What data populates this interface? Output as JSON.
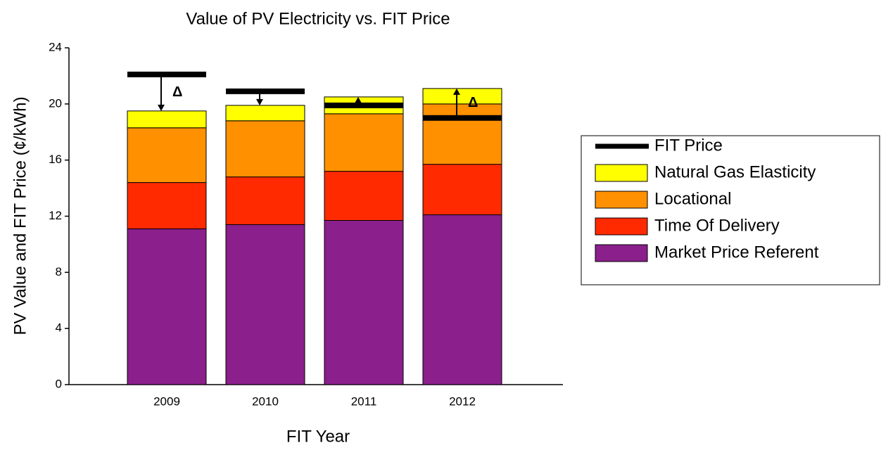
{
  "chart_data": {
    "type": "stacked_bar",
    "title": "Value of PV Electricity vs. FIT Price",
    "x_label": "FIT Year",
    "y_label": "PV Value and FIT Price (¢/kWh)",
    "categories": [
      "2009",
      "2010",
      "2011",
      "2012"
    ],
    "series": [
      {
        "name": "Market Price Referent",
        "color": "#8b1f8b",
        "values": [
          11.1,
          11.4,
          11.7,
          12.1
        ]
      },
      {
        "name": "Time Of Delivery",
        "color": "#ff2a00",
        "values": [
          3.3,
          3.4,
          3.5,
          3.6
        ]
      },
      {
        "name": "Locational",
        "color": "#ff9000",
        "values": [
          3.9,
          4.0,
          4.1,
          4.3
        ]
      },
      {
        "name": "Natural Gas Elasticity",
        "color": "#ffff00",
        "values": [
          1.2,
          1.1,
          1.2,
          1.1
        ]
      }
    ],
    "fit": {
      "name": "FIT Price",
      "color": "#000000",
      "values": [
        22.1,
        20.9,
        19.9,
        19.0
      ]
    },
    "annotations": [
      {
        "text": "Δ",
        "category": "2009"
      },
      {
        "text": "Δ",
        "category": "2012"
      }
    ],
    "ylim": [
      0,
      24
    ],
    "yticks": [
      0,
      4,
      8,
      12,
      16,
      20,
      24
    ],
    "grid": false,
    "legend": "right"
  }
}
